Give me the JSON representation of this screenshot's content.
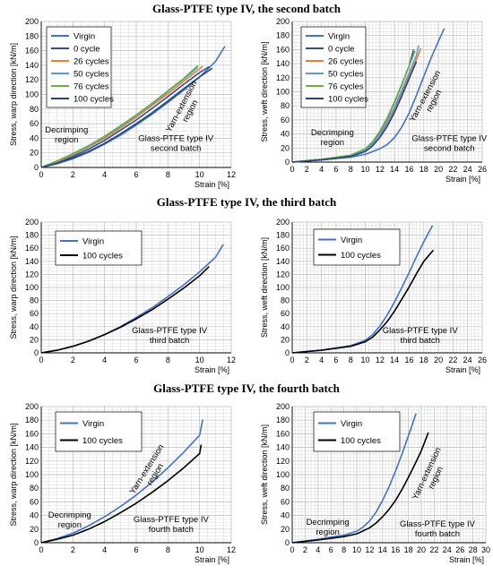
{
  "headings": [
    "Glass-PTFE type IV, the second batch",
    "Glass-PTFE type IV, the third batch",
    "Glass-PTFE type IV, the fourth batch"
  ],
  "colors": {
    "virgin": "#4472c4",
    "0 cycle": "#2f4f8f",
    "26 cycles": "#ed7d31",
    "50 cycles": "#5b9bd5",
    "76 cycles": "#70ad47",
    "100 cycles": "#264478",
    "black": "#000000"
  },
  "chart_data": [
    {
      "type": "line",
      "ylabel": "Stress, warp direction [kN/m]",
      "xlabel": "Strain [%]",
      "xlim": [
        0,
        12
      ],
      "xticks": [
        0,
        2,
        4,
        6,
        8,
        10,
        12
      ],
      "ylim": [
        0,
        200
      ],
      "yticks": [
        0,
        20,
        40,
        60,
        80,
        100,
        120,
        140,
        160,
        180,
        200
      ],
      "grid": "minor",
      "legend_position": "top-left",
      "annotations": [
        {
          "lines": [
            "Decrimping",
            "region"
          ],
          "x": 1.6,
          "y": 48
        },
        {
          "lines": [
            "Glass-PTFE type IV",
            "second batch"
          ],
          "x": 8.5,
          "y": 36
        },
        {
          "lines": [
            "Yarn-extension",
            "region"
          ],
          "x": 9.0,
          "y": 82,
          "rotate": -62
        }
      ],
      "series": [
        {
          "name": "Virgin",
          "color": "#4472c4",
          "x": [
            0,
            1,
            2,
            3,
            4,
            5,
            6,
            7,
            8,
            9,
            10,
            11,
            11.6
          ],
          "y": [
            0,
            5,
            12,
            21,
            32,
            44,
            58,
            73,
            89,
            106,
            124,
            145,
            166
          ]
        },
        {
          "name": "0 cycle",
          "color": "#2f4f8f",
          "x": [
            0,
            1,
            2,
            3,
            4,
            5,
            6,
            7,
            8,
            9,
            10,
            10.6
          ],
          "y": [
            0,
            7,
            15,
            25,
            37,
            51,
            65,
            81,
            97,
            114,
            130,
            138
          ]
        },
        {
          "name": "26 cycles",
          "color": "#ed7d31",
          "x": [
            0,
            1,
            2,
            3,
            4,
            5,
            6,
            7,
            8,
            9,
            10,
            10.2
          ],
          "y": [
            0,
            8,
            17,
            28,
            40,
            54,
            69,
            85,
            101,
            118,
            135,
            139
          ]
        },
        {
          "name": "50 cycles",
          "color": "#5b9bd5",
          "x": [
            0,
            1,
            2,
            3,
            4,
            5,
            6,
            7,
            8,
            9,
            9.9
          ],
          "y": [
            0,
            9,
            18,
            29,
            42,
            56,
            71,
            87,
            104,
            121,
            137
          ]
        },
        {
          "name": "76 cycles",
          "color": "#70ad47",
          "x": [
            0,
            1,
            2,
            3,
            4,
            5,
            6,
            7,
            8,
            9,
            9.9
          ],
          "y": [
            0,
            9,
            19,
            30,
            43,
            57,
            72,
            88,
            105,
            122,
            140
          ]
        },
        {
          "name": "100 cycles",
          "color": "#264478",
          "x": [
            0,
            1,
            2,
            3,
            4,
            5,
            6,
            7,
            8,
            9,
            10,
            10.8
          ],
          "y": [
            0,
            6,
            13,
            22,
            33,
            46,
            60,
            75,
            91,
            108,
            124,
            136
          ]
        }
      ]
    },
    {
      "type": "line",
      "ylabel": "Stress, weft direction [kN/m]",
      "xlabel": "Strain [%]",
      "xlim": [
        0,
        26
      ],
      "xticks": [
        0,
        2,
        4,
        6,
        8,
        10,
        12,
        14,
        16,
        18,
        20,
        22,
        24,
        26
      ],
      "ylim": [
        0,
        200
      ],
      "yticks": [
        0,
        20,
        40,
        60,
        80,
        100,
        120,
        140,
        160,
        180,
        200
      ],
      "grid": "minor",
      "legend_position": "top-left",
      "annotations": [
        {
          "lines": [
            "Decrimping",
            "region"
          ],
          "x": 5.5,
          "y": 38
        },
        {
          "lines": [
            "Glass-PTFE type IV",
            "second batch"
          ],
          "x": 21.5,
          "y": 30
        },
        {
          "lines": [
            "Yarn-extension",
            "region"
          ],
          "x": 18.5,
          "y": 92,
          "rotate": -62
        }
      ],
      "series": [
        {
          "name": "Virgin",
          "color": "#4472c4",
          "x": [
            0,
            4,
            8,
            10,
            12,
            13,
            14,
            15,
            16,
            17,
            18,
            19,
            20,
            20.8
          ],
          "y": [
            0,
            3,
            7,
            11,
            19,
            25,
            35,
            50,
            70,
            95,
            122,
            148,
            172,
            190
          ]
        },
        {
          "name": "0 cycle",
          "color": "#2f4f8f",
          "x": [
            0,
            4,
            8,
            10,
            11,
            12,
            13,
            14,
            15,
            16,
            16.6
          ],
          "y": [
            0,
            4,
            9,
            18,
            28,
            43,
            62,
            85,
            110,
            137,
            160
          ]
        },
        {
          "name": "26 cycles",
          "color": "#ed7d31",
          "x": [
            0,
            4,
            8,
            10,
            11,
            12,
            13,
            14,
            15,
            16,
            17,
            17.6
          ],
          "y": [
            0,
            4,
            9,
            17,
            26,
            39,
            55,
            75,
            98,
            122,
            146,
            162
          ]
        },
        {
          "name": "50 cycles",
          "color": "#5b9bd5",
          "x": [
            0,
            4,
            8,
            10,
            11,
            12,
            13,
            14,
            15,
            16,
            17,
            17.3
          ],
          "y": [
            0,
            4,
            9,
            17,
            26,
            40,
            57,
            78,
            102,
            127,
            152,
            166
          ]
        },
        {
          "name": "76 cycles",
          "color": "#70ad47",
          "x": [
            0,
            4,
            8,
            10,
            11,
            12,
            13,
            14,
            15,
            16,
            16.8
          ],
          "y": [
            0,
            4,
            10,
            19,
            29,
            44,
            63,
            86,
            111,
            137,
            158
          ]
        },
        {
          "name": "100 cycles",
          "color": "#264478",
          "x": [
            0,
            4,
            8,
            10,
            11,
            12,
            13,
            14,
            15,
            16,
            17
          ],
          "y": [
            0,
            3,
            8,
            15,
            23,
            35,
            51,
            71,
            94,
            119,
            143
          ]
        }
      ]
    },
    {
      "type": "line",
      "ylabel": "Stress, warp direction [kN/m]",
      "xlabel": "Strain [%]",
      "xlim": [
        0,
        12
      ],
      "xticks": [
        0,
        2,
        4,
        6,
        8,
        10,
        12
      ],
      "ylim": [
        0,
        200
      ],
      "yticks": [
        0,
        20,
        40,
        60,
        80,
        100,
        120,
        140,
        160,
        180,
        200
      ],
      "grid": "minor",
      "legend_position": "top-left",
      "annotations": [
        {
          "lines": [
            "Glass-PTFE type IV",
            "third batch"
          ],
          "x": 8.1,
          "y": 30
        }
      ],
      "series": [
        {
          "name": "Virgin",
          "color": "#4472c4",
          "x": [
            0,
            1,
            2,
            3,
            4,
            5,
            6,
            7,
            8,
            9,
            10,
            11,
            11.5
          ],
          "y": [
            0,
            4,
            10,
            18,
            28,
            40,
            54,
            69,
            86,
            104,
            124,
            146,
            166
          ]
        },
        {
          "name": "100 cycles",
          "color": "#000000",
          "x": [
            0,
            1,
            2,
            3,
            4,
            5,
            6,
            7,
            8,
            9,
            10,
            10.6
          ],
          "y": [
            0,
            4,
            10,
            18,
            28,
            39,
            52,
            66,
            82,
            99,
            118,
            132
          ]
        }
      ]
    },
    {
      "type": "line",
      "ylabel": "Stress, weft direction [kN/m]",
      "xlabel": "Strain [%]",
      "xlim": [
        0,
        26
      ],
      "xticks": [
        0,
        2,
        4,
        6,
        8,
        10,
        12,
        14,
        16,
        18,
        20,
        22,
        24,
        26
      ],
      "ylim": [
        0,
        200
      ],
      "yticks": [
        0,
        20,
        40,
        60,
        80,
        100,
        120,
        140,
        160,
        180,
        200
      ],
      "grid": "minor",
      "legend_position": "top-left",
      "annotations": [
        {
          "lines": [
            "Glass-PTFE type IV",
            "third batch"
          ],
          "x": 17.5,
          "y": 30
        }
      ],
      "series": [
        {
          "name": "Virgin",
          "color": "#4472c4",
          "x": [
            0,
            4,
            8,
            10,
            11,
            12,
            13,
            14,
            15,
            16,
            17,
            18,
            19.2
          ],
          "y": [
            0,
            4,
            11,
            19,
            28,
            41,
            58,
            78,
            100,
            123,
            147,
            170,
            195
          ]
        },
        {
          "name": "100 cycles",
          "color": "#000000",
          "x": [
            0,
            4,
            8,
            10,
            11,
            12,
            13,
            14,
            15,
            16,
            17,
            18,
            19.3
          ],
          "y": [
            0,
            4,
            10,
            17,
            24,
            35,
            48,
            64,
            82,
            101,
            121,
            140,
            157
          ]
        }
      ]
    },
    {
      "type": "line",
      "ylabel": "Stress, warp direction [kN/m]",
      "xlabel": "Strain [%]",
      "xlim": [
        0,
        12
      ],
      "xticks": [
        0,
        2,
        4,
        6,
        8,
        10,
        12
      ],
      "ylim": [
        0,
        200
      ],
      "yticks": [
        0,
        20,
        40,
        60,
        80,
        100,
        120,
        140,
        160,
        180,
        200
      ],
      "grid": "minor",
      "legend_position": "top-left",
      "annotations": [
        {
          "lines": [
            "Decrimping",
            "region"
          ],
          "x": 1.8,
          "y": 37
        },
        {
          "lines": [
            "Glass-PTFE type IV",
            "fourth batch"
          ],
          "x": 8.2,
          "y": 30
        },
        {
          "lines": [
            "Yarn-extension",
            "region"
          ],
          "x": 6.8,
          "y": 106,
          "rotate": -58
        }
      ],
      "series": [
        {
          "name": "Virgin",
          "color": "#4472c4",
          "x": [
            0,
            1,
            2,
            3,
            4,
            5,
            6,
            7,
            8,
            9,
            10,
            10.2
          ],
          "y": [
            0,
            6,
            14,
            25,
            38,
            53,
            70,
            89,
            110,
            133,
            158,
            181
          ]
        },
        {
          "name": "100 cycles",
          "color": "#000000",
          "x": [
            0,
            1,
            2,
            3,
            4,
            5,
            6,
            7,
            8,
            9,
            10,
            10.1
          ],
          "y": [
            0,
            5,
            11,
            20,
            31,
            44,
            58,
            74,
            91,
            110,
            131,
            144
          ]
        }
      ]
    },
    {
      "type": "line",
      "ylabel": "Stress, weft direction [kN/m]",
      "xlabel": "Strain [%]",
      "xlim": [
        0,
        30
      ],
      "xticks": [
        0,
        2,
        4,
        6,
        8,
        10,
        12,
        14,
        16,
        18,
        20,
        22,
        24,
        26,
        28,
        30
      ],
      "ylim": [
        0,
        200
      ],
      "yticks": [
        0,
        20,
        40,
        60,
        80,
        100,
        120,
        140,
        160,
        180,
        200
      ],
      "grid": "minor",
      "legend_position": "top-left",
      "annotations": [
        {
          "lines": [
            "Decrimping",
            "region"
          ],
          "x": 5.5,
          "y": 26
        },
        {
          "lines": [
            "Glass-PTFE type IV",
            "fourth batch"
          ],
          "x": 22.5,
          "y": 24
        },
        {
          "lines": [
            "Yarn-extension",
            "region"
          ],
          "x": 21.2,
          "y": 100,
          "rotate": -65
        }
      ],
      "series": [
        {
          "name": "Virgin",
          "color": "#4472c4",
          "x": [
            0,
            4,
            8,
            10,
            11,
            12,
            13,
            14,
            15,
            16,
            17,
            18,
            19.2
          ],
          "y": [
            0,
            5,
            11,
            17,
            23,
            32,
            45,
            62,
            82,
            105,
            130,
            157,
            190
          ]
        },
        {
          "name": "100 cycles",
          "color": "#000000",
          "x": [
            0,
            4,
            8,
            10,
            12,
            13,
            14,
            15,
            16,
            17,
            18,
            19,
            20,
            21.1
          ],
          "y": [
            0,
            4,
            9,
            13,
            22,
            29,
            38,
            49,
            62,
            78,
            96,
            115,
            135,
            162
          ]
        }
      ]
    }
  ]
}
